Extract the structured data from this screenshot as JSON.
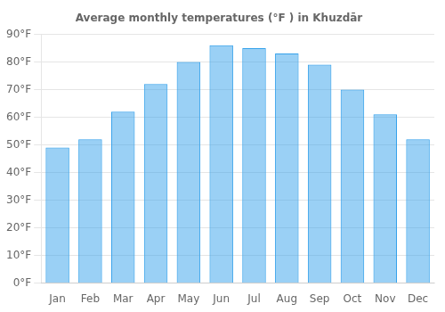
{
  "chart_data": {
    "type": "bar",
    "title": "Average monthly temperatures (°F ) in Khuzdār",
    "categories": [
      "Jan",
      "Feb",
      "Mar",
      "Apr",
      "May",
      "Jun",
      "Jul",
      "Aug",
      "Sep",
      "Oct",
      "Nov",
      "Dec"
    ],
    "values": [
      49,
      52,
      62,
      72,
      80,
      86,
      85,
      83,
      79,
      70,
      61,
      52
    ],
    "ylim": [
      0,
      90
    ],
    "yticks": [
      {
        "value": 0,
        "label": "0°F"
      },
      {
        "value": 10,
        "label": "10°F"
      },
      {
        "value": 20,
        "label": "20°F"
      },
      {
        "value": 30,
        "label": "30°F"
      },
      {
        "value": 40,
        "label": "40°F"
      },
      {
        "value": 50,
        "label": "50°F"
      },
      {
        "value": 60,
        "label": "60°F"
      },
      {
        "value": 70,
        "label": "70°F"
      },
      {
        "value": 80,
        "label": "80°F"
      },
      {
        "value": 90,
        "label": "90°F"
      }
    ],
    "grid": true
  }
}
